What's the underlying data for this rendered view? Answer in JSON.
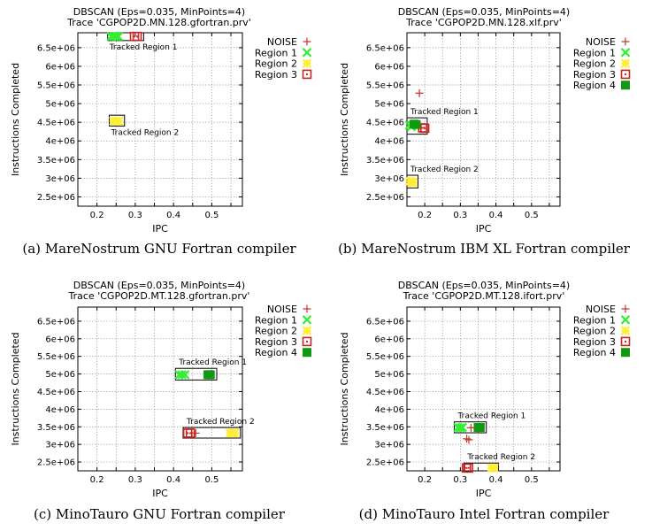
{
  "colors": {
    "NOISE": "#c0392b",
    "Region 1": "#33ee33",
    "Region 2": "#ffee33",
    "Region 3": "#cc2222",
    "Region 4": "#119911"
  },
  "chart_data": [
    {
      "type": "scatter",
      "title": "DBSCAN (Eps=0.035, MinPoints=4)",
      "subtitle": "Trace 'CGPOP2D.MN.128.gfortran.prv'",
      "xlabel": "IPC",
      "ylabel": "Instructions Completed",
      "caption": "(a) MareNostrum GNU Fortran compiler",
      "xlim": [
        0.15,
        0.58
      ],
      "ylim": [
        2250000,
        6900000
      ],
      "xticks": [
        0.2,
        0.25,
        0.3,
        0.35,
        0.4,
        0.45,
        0.5,
        0.55
      ],
      "xtick_labels": [
        "0.2",
        "",
        "0.3",
        "",
        "0.4",
        "",
        "0.5",
        ""
      ],
      "yticks": [
        2500000,
        3000000,
        3500000,
        4000000,
        4500000,
        5000000,
        5500000,
        6000000,
        6500000
      ],
      "ytick_labels": [
        "2.5e+06",
        "3e+06",
        "3.5e+06",
        "4e+06",
        "4.5e+06",
        "5e+06",
        "5.5e+06",
        "6e+06",
        "6.5e+06"
      ],
      "grid": true,
      "legend": [
        "NOISE",
        "Region 1",
        "Region 2",
        "Region 3"
      ],
      "series": [
        {
          "name": "Region 1",
          "marker": "x",
          "points": [
            [
              0.237,
              6800000
            ],
            [
              0.244,
              6800000
            ],
            [
              0.25,
              6800000
            ],
            [
              0.256,
              6800000
            ]
          ]
        },
        {
          "name": "Region 2",
          "marker": "star",
          "points": [
            [
              0.243,
              4530000
            ],
            [
              0.25,
              4530000
            ],
            [
              0.257,
              4530000
            ]
          ]
        },
        {
          "name": "Region 3",
          "marker": "sq",
          "points": [
            [
              0.298,
              6800000
            ],
            [
              0.305,
              6800000
            ]
          ]
        }
      ],
      "boxes": [
        {
          "label": "Tracked Region 1",
          "x0": 0.228,
          "x1": 0.322,
          "y0": 6690000,
          "y1": 6920000
        },
        {
          "label": "Tracked Region 2",
          "x0": 0.232,
          "x1": 0.272,
          "y0": 4400000,
          "y1": 4690000
        }
      ]
    },
    {
      "type": "scatter",
      "title": "DBSCAN (Eps=0.035, MinPoints=4)",
      "subtitle": "Trace 'CGPOP2D.MN.128.xlf.prv'",
      "xlabel": "IPC",
      "ylabel": "Instructions Completed",
      "caption": "(b) MareNostrum IBM XL Fortran compiler",
      "xlim": [
        0.15,
        0.58
      ],
      "ylim": [
        2250000,
        6900000
      ],
      "xticks": [
        0.2,
        0.25,
        0.3,
        0.35,
        0.4,
        0.45,
        0.5,
        0.55
      ],
      "xtick_labels": [
        "0.2",
        "",
        "0.3",
        "",
        "0.4",
        "",
        "0.5",
        ""
      ],
      "yticks": [
        2500000,
        3000000,
        3500000,
        4000000,
        4500000,
        5000000,
        5500000,
        6000000,
        6500000
      ],
      "ytick_labels": [
        "2.5e+06",
        "3e+06",
        "3.5e+06",
        "4e+06",
        "4.5e+06",
        "5e+06",
        "5.5e+06",
        "6e+06",
        "6.5e+06"
      ],
      "grid": true,
      "legend": [
        "NOISE",
        "Region 1",
        "Region 2",
        "Region 3",
        "Region 4"
      ],
      "series": [
        {
          "name": "NOISE",
          "marker": "plus",
          "points": [
            [
              0.185,
              5280000
            ],
            [
              0.19,
              4360000
            ]
          ]
        },
        {
          "name": "Region 1",
          "marker": "x",
          "points": [
            [
              0.157,
              4420000
            ],
            [
              0.162,
              4380000
            ],
            [
              0.166,
              4420000
            ]
          ]
        },
        {
          "name": "Region 2",
          "marker": "star",
          "points": [
            [
              0.158,
              2920000
            ],
            [
              0.164,
              2900000
            ],
            [
              0.168,
              2880000
            ]
          ]
        },
        {
          "name": "Region 3",
          "marker": "sq",
          "points": [
            [
              0.194,
              4350000
            ],
            [
              0.2,
              4340000
            ]
          ]
        },
        {
          "name": "Region 4",
          "marker": "fsq",
          "points": [
            [
              0.17,
              4450000
            ],
            [
              0.176,
              4440000
            ]
          ]
        }
      ],
      "boxes": [
        {
          "label": "Tracked Region 1",
          "x0": 0.15,
          "x1": 0.207,
          "y0": 4180000,
          "y1": 4620000
        },
        {
          "label": "Tracked Region 2",
          "x0": 0.15,
          "x1": 0.181,
          "y0": 2740000,
          "y1": 3080000
        }
      ]
    },
    {
      "type": "scatter",
      "title": "DBSCAN (Eps=0.035, MinPoints=4)",
      "subtitle": "Trace 'CGPOP2D.MT.128.gfortran.prv'",
      "xlabel": "IPC",
      "ylabel": "Instructions Completed",
      "caption": "(c) MinoTauro GNU Fortran compiler",
      "xlim": [
        0.15,
        0.58
      ],
      "ylim": [
        2250000,
        6900000
      ],
      "xticks": [
        0.2,
        0.25,
        0.3,
        0.35,
        0.4,
        0.45,
        0.5,
        0.55
      ],
      "xtick_labels": [
        "0.2",
        "",
        "0.3",
        "",
        "0.4",
        "",
        "0.5",
        ""
      ],
      "yticks": [
        2500000,
        3000000,
        3500000,
        4000000,
        4500000,
        5000000,
        5500000,
        6000000,
        6500000
      ],
      "ytick_labels": [
        "2.5e+06",
        "3e+06",
        "3.5e+06",
        "4e+06",
        "4.5e+06",
        "5e+06",
        "5.5e+06",
        "6e+06",
        "6.5e+06"
      ],
      "grid": true,
      "legend": [
        "NOISE",
        "Region 1",
        "Region 2",
        "Region 3",
        "Region 4"
      ],
      "series": [
        {
          "name": "NOISE",
          "marker": "plus",
          "points": [
            [
              0.458,
              3320000
            ]
          ]
        },
        {
          "name": "Region 1",
          "marker": "x",
          "points": [
            [
              0.415,
              4980000
            ],
            [
              0.422,
              4980000
            ],
            [
              0.43,
              4980000
            ]
          ]
        },
        {
          "name": "Region 2",
          "marker": "star",
          "points": [
            [
              0.548,
              3320000
            ],
            [
              0.554,
              3320000
            ],
            [
              0.56,
              3320000
            ]
          ]
        },
        {
          "name": "Region 3",
          "marker": "sq",
          "points": [
            [
              0.437,
              3320000
            ],
            [
              0.444,
              3320000
            ]
          ]
        },
        {
          "name": "Region 4",
          "marker": "fsq",
          "points": [
            [
              0.49,
              4980000
            ],
            [
              0.496,
              4980000
            ]
          ]
        }
      ],
      "boxes": [
        {
          "label": "Tracked Region 1",
          "x0": 0.405,
          "x1": 0.513,
          "y0": 4830000,
          "y1": 5160000
        },
        {
          "label": "Tracked Region 2",
          "x0": 0.425,
          "x1": 0.575,
          "y0": 3180000,
          "y1": 3480000
        }
      ]
    },
    {
      "type": "scatter",
      "title": "DBSCAN (Eps=0.035, MinPoints=4)",
      "subtitle": "Trace 'CGPOP2D.MT.128.ifort.prv'",
      "xlabel": "IPC",
      "ylabel": "Instructions Completed",
      "caption": "(d) MinoTauro Intel Fortran compiler",
      "xlim": [
        0.15,
        0.58
      ],
      "ylim": [
        2250000,
        6900000
      ],
      "xticks": [
        0.2,
        0.25,
        0.3,
        0.35,
        0.4,
        0.45,
        0.5,
        0.55
      ],
      "xtick_labels": [
        "0.2",
        "",
        "0.3",
        "",
        "0.4",
        "",
        "0.5",
        ""
      ],
      "yticks": [
        2500000,
        3000000,
        3500000,
        4000000,
        4500000,
        5000000,
        5500000,
        6000000,
        6500000
      ],
      "ytick_labels": [
        "2.5e+06",
        "3e+06",
        "3.5e+06",
        "4e+06",
        "4.5e+06",
        "5e+06",
        "5.5e+06",
        "6e+06",
        "6.5e+06"
      ],
      "grid": true,
      "legend": [
        "NOISE",
        "Region 1",
        "Region 2",
        "Region 3",
        "Region 4"
      ],
      "series": [
        {
          "name": "NOISE",
          "marker": "plus",
          "points": [
            [
              0.318,
              3160000
            ],
            [
              0.324,
              3130000
            ],
            [
              0.33,
              3470000
            ]
          ]
        },
        {
          "name": "Region 1",
          "marker": "x",
          "points": [
            [
              0.293,
              3480000
            ],
            [
              0.3,
              3470000
            ],
            [
              0.306,
              3480000
            ]
          ]
        },
        {
          "name": "Region 2",
          "marker": "star",
          "points": [
            [
              0.388,
              2330000
            ],
            [
              0.395,
              2330000
            ]
          ]
        },
        {
          "name": "Region 3",
          "marker": "sq",
          "points": [
            [
              0.317,
              2330000
            ],
            [
              0.323,
              2330000
            ]
          ]
        },
        {
          "name": "Region 4",
          "marker": "fsq",
          "points": [
            [
              0.35,
              3480000
            ],
            [
              0.356,
              3480000
            ]
          ]
        }
      ],
      "boxes": [
        {
          "label": "Tracked Region 1",
          "x0": 0.283,
          "x1": 0.373,
          "y0": 3330000,
          "y1": 3640000
        },
        {
          "label": "Tracked Region 2",
          "x0": 0.31,
          "x1": 0.407,
          "y0": 2200000,
          "y1": 2470000
        }
      ]
    }
  ]
}
